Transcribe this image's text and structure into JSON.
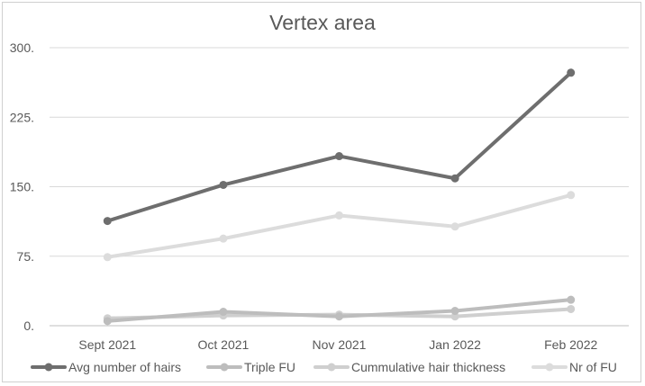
{
  "chart_data": {
    "type": "line",
    "title": "Vertex area",
    "categories": [
      "Sept 2021",
      "Oct 2021",
      "Nov 2021",
      "Jan 2022",
      "Feb 2022"
    ],
    "y_ticks": [
      "0.",
      "75.",
      "150.",
      "225.",
      "300."
    ],
    "ylim": [
      0,
      300
    ],
    "grid": true,
    "legend_position": "bottom",
    "series": [
      {
        "name": "Avg number of hairs",
        "values": [
          113,
          152,
          183,
          159,
          273
        ],
        "color": "#6e6e6e"
      },
      {
        "name": "Triple FU",
        "values": [
          5,
          15,
          10,
          16,
          28
        ],
        "color": "#bdbdbd"
      },
      {
        "name": "Cummulative hair thickness",
        "values": [
          8,
          11,
          12,
          10,
          18
        ],
        "color": "#cfcfcf"
      },
      {
        "name": "Nr of FU",
        "values": [
          74,
          94,
          119,
          107,
          141
        ],
        "color": "#dcdcdc"
      }
    ]
  }
}
